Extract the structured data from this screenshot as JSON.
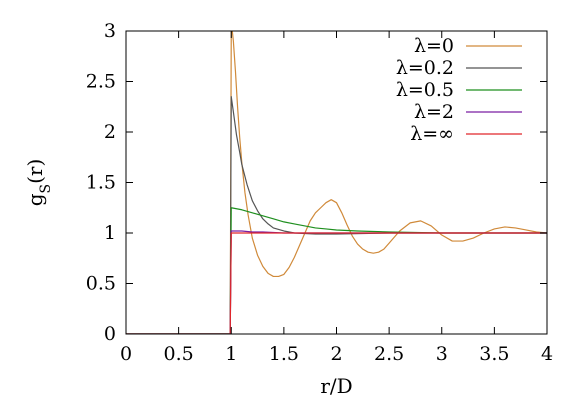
{
  "chart_data": {
    "type": "line",
    "title": "",
    "xlabel": "r/D",
    "ylabel": "g",
    "ylabel_sub": "S",
    "ylabel_suffix": "(r)",
    "xlim": [
      0,
      4
    ],
    "ylim": [
      0,
      3
    ],
    "xticks": [
      {
        "value": 0,
        "label": "0"
      },
      {
        "value": 0.5,
        "label": "0.5"
      },
      {
        "value": 1,
        "label": "1"
      },
      {
        "value": 1.5,
        "label": "1.5"
      },
      {
        "value": 2,
        "label": "2"
      },
      {
        "value": 2.5,
        "label": "2.5"
      },
      {
        "value": 3,
        "label": "3"
      },
      {
        "value": 3.5,
        "label": "3.5"
      },
      {
        "value": 4,
        "label": "4"
      }
    ],
    "yticks": [
      {
        "value": 0,
        "label": "0"
      },
      {
        "value": 0.5,
        "label": "0.5"
      },
      {
        "value": 1,
        "label": "1"
      },
      {
        "value": 1.5,
        "label": "1.5"
      },
      {
        "value": 2,
        "label": "2"
      },
      {
        "value": 2.5,
        "label": "2.5"
      },
      {
        "value": 3,
        "label": "3"
      }
    ],
    "grid": false,
    "legend_position": "top-right",
    "series": [
      {
        "name": "λ=0",
        "color": "#d08a3a",
        "x": [
          0,
          0.99,
          1.0,
          1.01,
          1.02,
          1.04,
          1.06,
          1.08,
          1.1,
          1.13,
          1.16,
          1.2,
          1.25,
          1.3,
          1.35,
          1.4,
          1.45,
          1.5,
          1.55,
          1.6,
          1.65,
          1.7,
          1.75,
          1.8,
          1.85,
          1.9,
          1.95,
          2.0,
          2.05,
          2.1,
          2.15,
          2.2,
          2.25,
          2.3,
          2.35,
          2.4,
          2.45,
          2.5,
          2.6,
          2.7,
          2.8,
          2.9,
          3.0,
          3.1,
          3.2,
          3.3,
          3.4,
          3.5,
          3.6,
          3.7,
          3.8,
          3.9,
          4.0
        ],
        "y": [
          0,
          0,
          3.0,
          3.0,
          2.9,
          2.6,
          2.25,
          1.95,
          1.7,
          1.4,
          1.18,
          0.95,
          0.78,
          0.67,
          0.6,
          0.57,
          0.57,
          0.59,
          0.66,
          0.76,
          0.88,
          1.0,
          1.12,
          1.2,
          1.25,
          1.3,
          1.33,
          1.3,
          1.2,
          1.08,
          0.97,
          0.89,
          0.84,
          0.81,
          0.8,
          0.81,
          0.84,
          0.9,
          1.02,
          1.1,
          1.12,
          1.07,
          0.98,
          0.92,
          0.92,
          0.95,
          1.0,
          1.04,
          1.06,
          1.05,
          1.03,
          1.01,
          1.0
        ]
      },
      {
        "name": "λ=0.2",
        "color": "#555555",
        "x": [
          0,
          0.99,
          1.0,
          1.02,
          1.05,
          1.08,
          1.1,
          1.15,
          1.2,
          1.25,
          1.3,
          1.35,
          1.4,
          1.5,
          1.6,
          1.8,
          2.0,
          2.5,
          3.0,
          4.0
        ],
        "y": [
          0,
          0,
          2.35,
          2.2,
          1.97,
          1.8,
          1.68,
          1.48,
          1.32,
          1.22,
          1.14,
          1.09,
          1.05,
          1.02,
          1.0,
          0.99,
          0.99,
          1.0,
          1.0,
          1.0
        ]
      },
      {
        "name": "λ=0.5",
        "color": "#1f8f1f",
        "x": [
          0,
          0.99,
          1.0,
          1.1,
          1.2,
          1.3,
          1.4,
          1.5,
          1.6,
          1.7,
          1.8,
          1.9,
          2.0,
          2.2,
          2.5,
          3.0,
          3.5,
          4.0
        ],
        "y": [
          0,
          0,
          1.25,
          1.23,
          1.2,
          1.17,
          1.14,
          1.11,
          1.09,
          1.07,
          1.05,
          1.04,
          1.03,
          1.02,
          1.01,
          1.0,
          1.0,
          1.0
        ]
      },
      {
        "name": "λ=2",
        "color": "#7a1fa2",
        "x": [
          0,
          0.99,
          1.0,
          1.1,
          1.2,
          1.3,
          1.5,
          2.0,
          2.5,
          3.0,
          4.0
        ],
        "y": [
          0,
          0,
          1.02,
          1.02,
          1.01,
          1.01,
          1.0,
          1.0,
          1.0,
          1.0,
          1.0
        ]
      },
      {
        "name": "λ=∞",
        "color": "#e0262b",
        "x": [
          0,
          0.99,
          1.0,
          2.0,
          3.0,
          4.0
        ],
        "y": [
          0,
          0,
          1.0,
          1.0,
          1.0,
          1.0
        ]
      }
    ]
  }
}
